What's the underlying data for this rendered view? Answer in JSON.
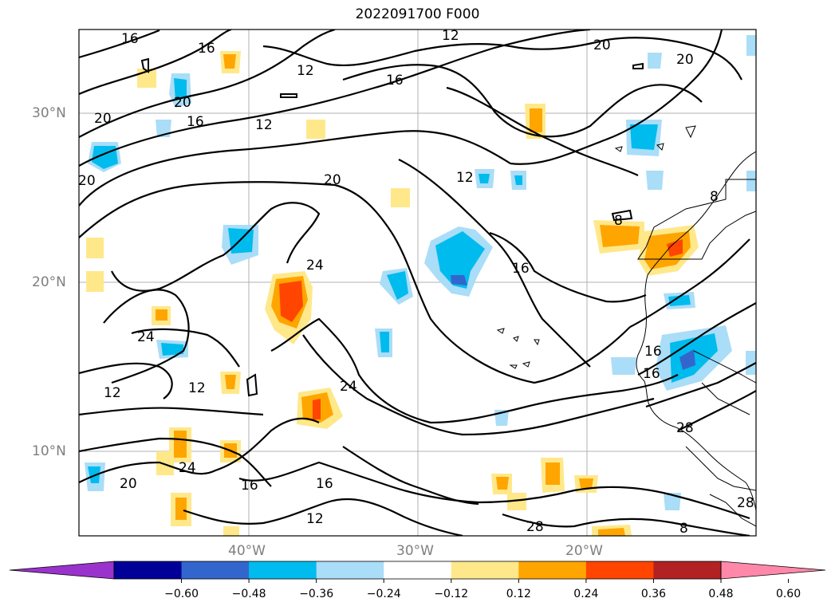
{
  "title": "2022091700 F000",
  "map": {
    "lat_labels": [
      "30°N",
      "20°N",
      "10°N"
    ],
    "lon_labels": [
      "40°W",
      "30°W",
      "20°W"
    ],
    "contour_labels": [
      "12",
      "16",
      "20",
      "24",
      "28",
      "8",
      "24",
      "16",
      "12",
      "16",
      "20",
      "24",
      "12",
      "16",
      "20",
      "28",
      "8"
    ]
  },
  "colorbar": {
    "ticks": [
      "−0.60",
      "−0.48",
      "−0.36",
      "−0.24",
      "−0.12",
      "0.12",
      "0.24",
      "0.36",
      "0.48",
      "0.60"
    ],
    "colors": [
      "#9933cc",
      "#000099",
      "#3366cc",
      "#00bbee",
      "#aaddf7",
      "#ffffff",
      "#ffe88a",
      "#ffa500",
      "#ff4500",
      "#b22222",
      "#ff88aa"
    ]
  }
}
